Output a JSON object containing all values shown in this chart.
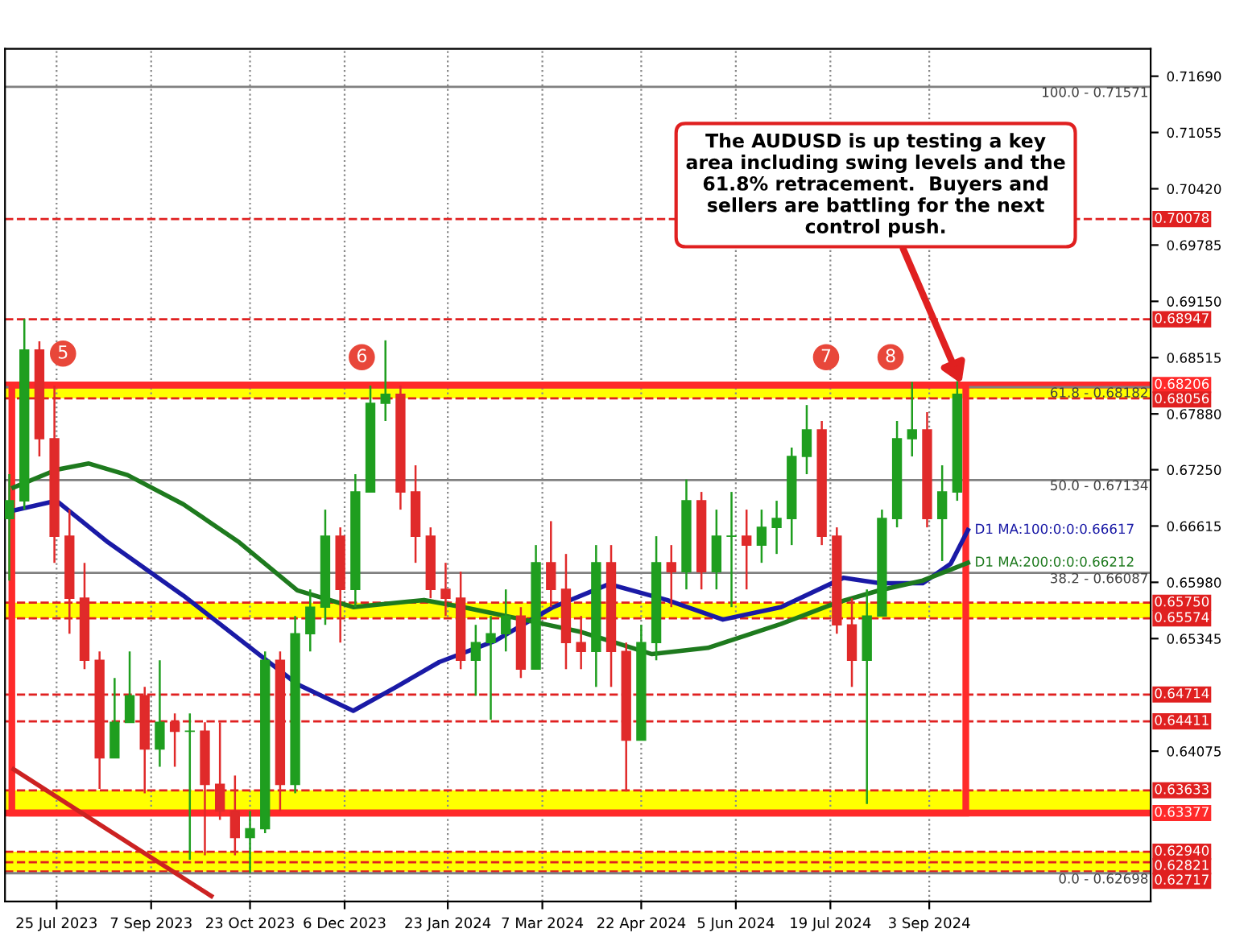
{
  "chart_data": {
    "type": "candlestick",
    "x": [
      "2023-07-03",
      "2023-07-10",
      "2023-07-17",
      "2023-07-24",
      "2023-07-31",
      "2023-08-07",
      "2023-08-14",
      "2023-08-21",
      "2023-08-28",
      "2023-09-04",
      "2023-09-11",
      "2023-09-18",
      "2023-09-25",
      "2023-10-02",
      "2023-10-09",
      "2023-10-16",
      "2023-10-23",
      "2023-10-30",
      "2023-11-06",
      "2023-11-13",
      "2023-11-20",
      "2023-11-27",
      "2023-12-04",
      "2023-12-11",
      "2023-12-18",
      "2023-12-25",
      "2024-01-01",
      "2024-01-08",
      "2024-01-15",
      "2024-01-22",
      "2024-01-29",
      "2024-02-05",
      "2024-02-12",
      "2024-02-19",
      "2024-02-26",
      "2024-03-04",
      "2024-03-11",
      "2024-03-18",
      "2024-03-25",
      "2024-04-01",
      "2024-04-08",
      "2024-04-15",
      "2024-04-22",
      "2024-04-29",
      "2024-05-06",
      "2024-05-13",
      "2024-05-20",
      "2024-05-27",
      "2024-06-03",
      "2024-06-10",
      "2024-06-17",
      "2024-06-24",
      "2024-07-01",
      "2024-07-08",
      "2024-07-15",
      "2024-07-22",
      "2024-07-29",
      "2024-08-05",
      "2024-08-12",
      "2024-08-19",
      "2024-08-26",
      "2024-09-02",
      "2024-09-09",
      "2024-09-16"
    ],
    "ohlc": [
      [
        0.667,
        0.672,
        0.66,
        0.669
      ],
      [
        0.669,
        0.6895,
        0.668,
        0.686
      ],
      [
        0.686,
        0.687,
        0.674,
        0.676
      ],
      [
        0.676,
        0.682,
        0.662,
        0.665
      ],
      [
        0.665,
        0.668,
        0.654,
        0.658
      ],
      [
        0.658,
        0.662,
        0.65,
        0.651
      ],
      [
        0.651,
        0.652,
        0.6365,
        0.64
      ],
      [
        0.64,
        0.649,
        0.64,
        0.644
      ],
      [
        0.644,
        0.652,
        0.644,
        0.647
      ],
      [
        0.647,
        0.648,
        0.636,
        0.641
      ],
      [
        0.641,
        0.651,
        0.639,
        0.644
      ],
      [
        0.644,
        0.645,
        0.639,
        0.643
      ],
      [
        0.643,
        0.645,
        0.6285,
        0.643
      ],
      [
        0.643,
        0.644,
        0.629,
        0.637
      ],
      [
        0.637,
        0.644,
        0.633,
        0.634
      ],
      [
        0.634,
        0.638,
        0.629,
        0.631
      ],
      [
        0.631,
        0.634,
        0.627,
        0.632
      ],
      [
        0.632,
        0.652,
        0.6315,
        0.651
      ],
      [
        0.651,
        0.652,
        0.634,
        0.637
      ],
      [
        0.637,
        0.656,
        0.636,
        0.654
      ],
      [
        0.654,
        0.659,
        0.652,
        0.657
      ],
      [
        0.657,
        0.668,
        0.655,
        0.665
      ],
      [
        0.665,
        0.666,
        0.653,
        0.659
      ],
      [
        0.659,
        0.672,
        0.657,
        0.67
      ],
      [
        0.67,
        0.682,
        0.67,
        0.68
      ],
      [
        0.68,
        0.6871,
        0.678,
        0.681
      ],
      [
        0.681,
        0.682,
        0.668,
        0.67
      ],
      [
        0.67,
        0.673,
        0.662,
        0.665
      ],
      [
        0.665,
        0.666,
        0.658,
        0.659
      ],
      [
        0.659,
        0.662,
        0.656,
        0.658
      ],
      [
        0.658,
        0.661,
        0.65,
        0.651
      ],
      [
        0.651,
        0.655,
        0.647,
        0.653
      ],
      [
        0.653,
        0.656,
        0.6443,
        0.654
      ],
      [
        0.654,
        0.659,
        0.652,
        0.656
      ],
      [
        0.656,
        0.657,
        0.649,
        0.65
      ],
      [
        0.65,
        0.664,
        0.65,
        0.662
      ],
      [
        0.662,
        0.6667,
        0.657,
        0.659
      ],
      [
        0.659,
        0.663,
        0.65,
        0.653
      ],
      [
        0.653,
        0.656,
        0.65,
        0.652
      ],
      [
        0.652,
        0.664,
        0.648,
        0.662
      ],
      [
        0.662,
        0.664,
        0.648,
        0.652
      ],
      [
        0.652,
        0.653,
        0.6362,
        0.642
      ],
      [
        0.642,
        0.655,
        0.642,
        0.653
      ],
      [
        0.653,
        0.665,
        0.651,
        0.662
      ],
      [
        0.662,
        0.664,
        0.657,
        0.661
      ],
      [
        0.661,
        0.6714,
        0.659,
        0.669
      ],
      [
        0.669,
        0.67,
        0.659,
        0.661
      ],
      [
        0.661,
        0.668,
        0.659,
        0.665
      ],
      [
        0.665,
        0.67,
        0.657,
        0.665
      ],
      [
        0.665,
        0.668,
        0.659,
        0.664
      ],
      [
        0.664,
        0.668,
        0.662,
        0.666
      ],
      [
        0.666,
        0.669,
        0.663,
        0.667
      ],
      [
        0.667,
        0.675,
        0.664,
        0.674
      ],
      [
        0.674,
        0.6798,
        0.672,
        0.677
      ],
      [
        0.677,
        0.678,
        0.664,
        0.665
      ],
      [
        0.665,
        0.666,
        0.654,
        0.655
      ],
      [
        0.655,
        0.658,
        0.648,
        0.651
      ],
      [
        0.651,
        0.659,
        0.6348,
        0.656
      ],
      [
        0.656,
        0.668,
        0.656,
        0.667
      ],
      [
        0.667,
        0.678,
        0.666,
        0.676
      ],
      [
        0.676,
        0.6824,
        0.674,
        0.677
      ],
      [
        0.677,
        0.679,
        0.666,
        0.667
      ],
      [
        0.667,
        0.673,
        0.6622,
        0.67
      ],
      [
        0.67,
        0.6825,
        0.669,
        0.681
      ]
    ],
    "series": [
      {
        "type": "line",
        "name": "D1 MA:100:0:0:0.66617",
        "color": "#1a1aa6",
        "x": [
          "2023-07-05",
          "2023-07-25",
          "2023-08-18",
          "2023-09-22",
          "2023-10-18",
          "2023-11-14",
          "2023-12-10",
          "2023-12-30",
          "2024-01-19",
          "2024-02-14",
          "2024-03-12",
          "2024-04-07",
          "2024-05-04",
          "2024-05-30",
          "2024-06-26",
          "2024-07-25",
          "2024-08-11",
          "2024-08-31",
          "2024-09-13",
          "2024-09-21"
        ],
        "values": [
          0.6679,
          0.669,
          0.6643,
          0.6583,
          0.6534,
          0.6483,
          0.6453,
          0.648,
          0.6508,
          0.6532,
          0.657,
          0.6596,
          0.6578,
          0.6556,
          0.657,
          0.6603,
          0.6597,
          0.6597,
          0.6619,
          0.6657
        ]
      },
      {
        "type": "line",
        "name": "D1 MA:200:0:0:0.66212",
        "color": "#1e7a1e",
        "x": [
          "2023-07-05",
          "2023-07-25",
          "2023-08-09",
          "2023-08-27",
          "2023-09-22",
          "2023-10-18",
          "2023-11-14",
          "2023-12-10",
          "2024-01-12",
          "2024-02-01",
          "2024-02-27",
          "2024-03-25",
          "2024-04-27",
          "2024-05-23",
          "2024-06-26",
          "2024-07-22",
          "2024-08-11",
          "2024-08-31",
          "2024-09-21"
        ],
        "values": [
          0.6705,
          0.6725,
          0.6732,
          0.6719,
          0.6686,
          0.6643,
          0.6589,
          0.657,
          0.6578,
          0.6569,
          0.6556,
          0.6542,
          0.6517,
          0.6524,
          0.6551,
          0.6575,
          0.6589,
          0.66,
          0.662
        ]
      },
      {
        "type": "line",
        "color": "#cc2222",
        "x": [
          "2023-07-05",
          "2023-10-05"
        ],
        "values": [
          0.6387,
          0.6244
        ]
      }
    ],
    "xlim": [
      "2023-07-01",
      "2024-12-15"
    ],
    "xticks": [
      {
        "value": "2023-07-25",
        "label": "25 Jul 2023"
      },
      {
        "value": "2023-09-07",
        "label": "7 Sep 2023"
      },
      {
        "value": "2023-10-23",
        "label": "23 Oct 2023"
      },
      {
        "value": "2023-12-06",
        "label": "6 Dec 2023"
      },
      {
        "value": "2024-01-23",
        "label": "23 Jan 2024"
      },
      {
        "value": "2024-03-07",
        "label": "7 Mar 2024"
      },
      {
        "value": "2024-04-22",
        "label": "22 Apr 2024"
      },
      {
        "value": "2024-06-05",
        "label": "5 Jun 2024"
      },
      {
        "value": "2024-07-19",
        "label": "19 Jul 2024"
      },
      {
        "value": "2024-09-03",
        "label": "3 Sep 2024"
      }
    ],
    "ylim": [
      0.6238,
      0.72
    ],
    "yticks": [
      {
        "value": 0.7169,
        "label": "0.71690"
      },
      {
        "value": 0.71055,
        "label": "0.71055"
      },
      {
        "value": 0.7042,
        "label": "0.70420"
      },
      {
        "value": 0.69785,
        "label": "0.69785"
      },
      {
        "value": 0.6915,
        "label": "0.69150"
      },
      {
        "value": 0.68515,
        "label": "0.68515"
      },
      {
        "value": 0.6788,
        "label": "0.67880"
      },
      {
        "value": 0.6725,
        "label": "0.67250"
      },
      {
        "value": 0.66615,
        "label": "0.66615"
      },
      {
        "value": 0.6598,
        "label": "0.65980"
      },
      {
        "value": 0.65345,
        "label": "0.65345"
      },
      {
        "value": 0.64075,
        "label": "0.64075"
      }
    ],
    "grid": "x",
    "ref_lines": [
      {
        "axis": "y",
        "value": 0.70078,
        "label": "0.70078",
        "color": "#e02020",
        "line_style": "dashed"
      },
      {
        "axis": "y",
        "value": 0.68947,
        "label": "0.68947",
        "color": "#e02020",
        "line_style": "dashed"
      },
      {
        "axis": "y",
        "value": 0.68206,
        "label": "0.68206",
        "color": "#ff2a2a",
        "line_style": "solid"
      },
      {
        "axis": "y",
        "value": 0.68056,
        "label": "0.68056",
        "color": "#e02020",
        "line_style": "dashed"
      },
      {
        "axis": "y",
        "value": 0.6575,
        "label": "0.65750",
        "color": "#e02020",
        "line_style": "dashed"
      },
      {
        "axis": "y",
        "value": 0.65574,
        "label": "0.65574",
        "color": "#e02020",
        "line_style": "dashed"
      },
      {
        "axis": "y",
        "value": 0.64714,
        "label": "0.64714",
        "color": "#e02020",
        "line_style": "dashed"
      },
      {
        "axis": "y",
        "value": 0.64411,
        "label": "0.64411",
        "color": "#e02020",
        "line_style": "dashed"
      },
      {
        "axis": "y",
        "value": 0.63633,
        "label": "0.63633",
        "color": "#e02020",
        "line_style": "dashed"
      },
      {
        "axis": "y",
        "value": 0.63377,
        "label": "0.63377",
        "color": "#ff2a2a",
        "line_style": "solid"
      },
      {
        "axis": "y",
        "value": 0.6294,
        "label": "0.62940",
        "color": "#e02020",
        "line_style": "dashed"
      },
      {
        "axis": "y",
        "value": 0.62821,
        "label": "0.62821",
        "color": "#e02020",
        "line_style": "dashed"
      },
      {
        "axis": "y",
        "value": 0.62717,
        "label": "0.62717",
        "color": "#e02020",
        "line_style": "dashed"
      },
      {
        "axis": "y",
        "value": 0.71571,
        "color": "#808080",
        "line_style": "solid"
      },
      {
        "axis": "y",
        "value": 0.68182,
        "color": "#808080",
        "line_style": "solid"
      },
      {
        "axis": "y",
        "value": 0.67134,
        "color": "#808080",
        "line_style": "solid"
      },
      {
        "axis": "y",
        "value": 0.66087,
        "color": "#808080",
        "line_style": "solid"
      },
      {
        "axis": "y",
        "value": 0.62698,
        "color": "#808080",
        "line_style": "solid"
      }
    ],
    "bands": [
      {
        "axis": "y",
        "from": 0.68056,
        "to": 0.68206,
        "color": "#ffff00"
      },
      {
        "axis": "y",
        "from": 0.65574,
        "to": 0.6575,
        "color": "#ffff00"
      },
      {
        "axis": "y",
        "from": 0.63377,
        "to": 0.63633,
        "color": "#ffff00"
      },
      {
        "axis": "y",
        "from": 0.62717,
        "to": 0.6294,
        "color": "#ffff00"
      }
    ],
    "annotations": [
      {
        "text": "5",
        "x": "2023-07-28",
        "y": 0.6856
      },
      {
        "text": "6",
        "x": "2023-12-14",
        "y": 0.6852
      },
      {
        "text": "7",
        "x": "2024-07-17",
        "y": 0.6852
      },
      {
        "text": "8",
        "x": "2024-08-16",
        "y": 0.6852
      },
      {
        "text": "100.0 - 0.71571",
        "x": "2024-12-14",
        "y": 0.71571
      },
      {
        "text": "61.8 - 0.68182",
        "x": "2024-12-14",
        "y": 0.68182
      },
      {
        "text": "50.0 - 0.67134",
        "x": "2024-12-14",
        "y": 0.67134
      },
      {
        "text": "38.2 - 0.66087",
        "x": "2024-12-14",
        "y": 0.66087
      },
      {
        "text": "0.0 - 0.62698",
        "x": "2024-12-14",
        "y": 0.62698
      },
      {
        "text": "The AUDUSD is up testing a key\narea including swing levels and the\n61.8% retracement.  Buyers and\nsellers are battling for the next\ncontrol push.",
        "x": "2024-09-18",
        "y": 0.6822
      }
    ]
  }
}
